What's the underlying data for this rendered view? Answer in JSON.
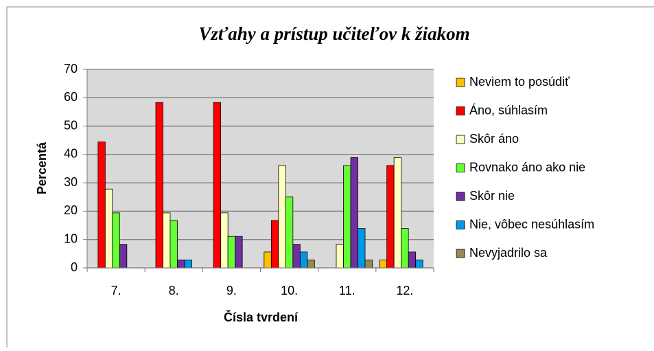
{
  "chart_data": {
    "type": "bar",
    "title": "Vzťahy a prístup učiteľov k žiakom",
    "x_label": "Čísla tvrdení",
    "y_label": "Percentá",
    "categories": [
      "7.",
      "8.",
      "9.",
      "10.",
      "11.",
      "12."
    ],
    "series": [
      {
        "name": "Neviem to posúdiť",
        "color": "#ffc000",
        "values": [
          0,
          0,
          0,
          5.6,
          0,
          2.8
        ]
      },
      {
        "name": "Áno, súhlasím",
        "color": "#ff0000",
        "values": [
          44.4,
          58.3,
          58.3,
          16.7,
          0,
          36.1
        ]
      },
      {
        "name": "Skôr áno",
        "color": "#ffffc0",
        "values": [
          27.8,
          19.4,
          19.4,
          36.1,
          8.3,
          38.9
        ]
      },
      {
        "name": "Rovnako áno ako nie",
        "color": "#66ff33",
        "values": [
          19.4,
          16.7,
          11.1,
          25,
          36.1,
          13.9
        ]
      },
      {
        "name": "Skôr nie",
        "color": "#7030a0",
        "values": [
          8.3,
          2.8,
          11.1,
          8.3,
          38.9,
          5.6
        ]
      },
      {
        "name": "Nie, vôbec nesúhlasím",
        "color": "#0099e6",
        "values": [
          0,
          2.8,
          0,
          5.6,
          13.9,
          2.8
        ]
      },
      {
        "name": "Nevyjadrilo sa",
        "color": "#948a54",
        "values": [
          0,
          0,
          0,
          2.8,
          2.8,
          0
        ]
      }
    ],
    "ylim": [
      0,
      70
    ],
    "yticks": [
      0,
      10,
      20,
      30,
      40,
      50,
      60,
      70
    ],
    "grid": true,
    "legend": "right"
  }
}
